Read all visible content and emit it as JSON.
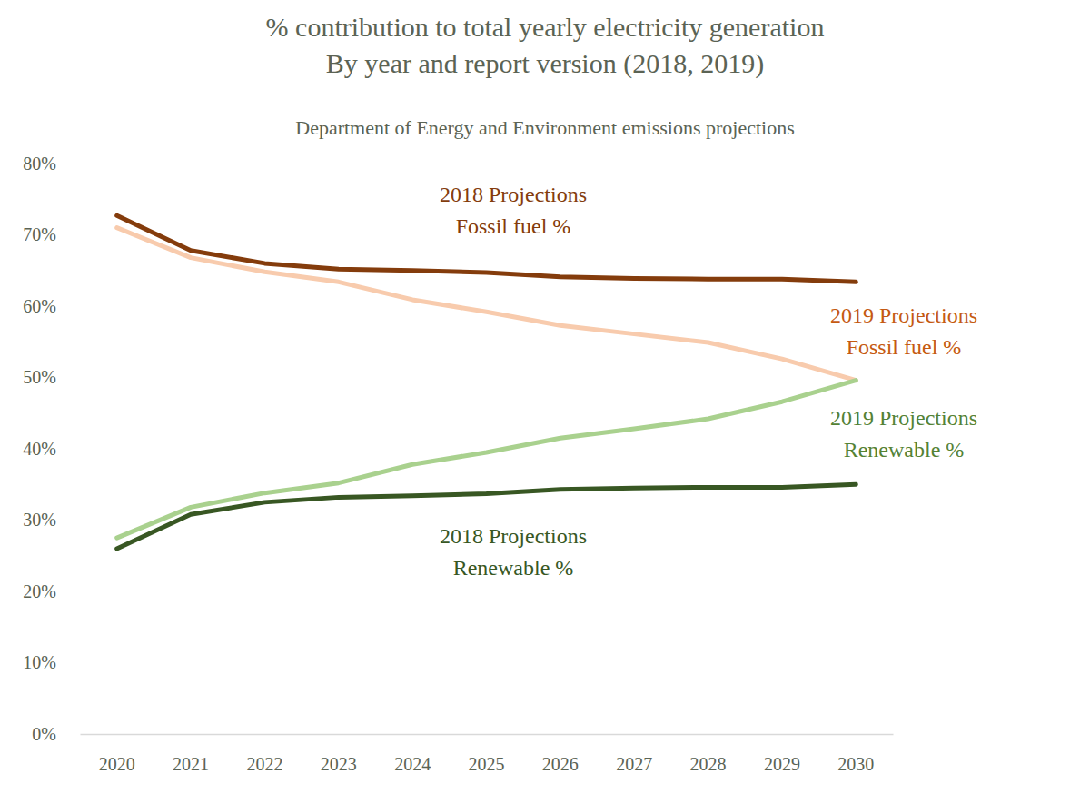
{
  "chart_data": {
    "type": "line",
    "title": [
      "% contribution to total yearly electricity generation",
      "By year and report version (2018, 2019)"
    ],
    "subtitle": "Department of Energy and Environment emissions projections",
    "categories": [
      "2020",
      "2021",
      "2022",
      "2023",
      "2024",
      "2025",
      "2026",
      "2027",
      "2028",
      "2029",
      "2030"
    ],
    "series": [
      {
        "name": "2018 Projections\nFossil fuel %",
        "color": "#843c0c",
        "values": [
          72.7,
          67.8,
          66.0,
          65.2,
          65.0,
          64.7,
          64.1,
          63.9,
          63.8,
          63.8,
          63.4
        ]
      },
      {
        "name": "2019 Projections\nFossil fuel %",
        "color": "#f8cbad",
        "values": [
          71.0,
          66.8,
          64.8,
          63.4,
          60.9,
          59.2,
          57.3,
          56.1,
          54.9,
          52.6,
          49.6
        ]
      },
      {
        "name": "2019 Projections\nRenewable %",
        "color": "#a9d18e",
        "values": [
          27.5,
          31.8,
          33.8,
          35.2,
          37.8,
          39.5,
          41.5,
          42.8,
          44.2,
          46.6,
          49.6
        ]
      },
      {
        "name": "2018 Projections\nRenewable %",
        "color": "#385723",
        "values": [
          26.0,
          30.8,
          32.5,
          33.2,
          33.4,
          33.7,
          34.3,
          34.5,
          34.6,
          34.6,
          35.0
        ]
      }
    ],
    "ylim": [
      0,
      80
    ],
    "yticks": [
      {
        "value": 0,
        "label": "0%"
      },
      {
        "value": 10,
        "label": "10%"
      },
      {
        "value": 20,
        "label": "20%"
      },
      {
        "value": 30,
        "label": "30%"
      },
      {
        "value": 40,
        "label": "40%"
      },
      {
        "value": 50,
        "label": "50%"
      },
      {
        "value": 60,
        "label": "60%"
      },
      {
        "value": 70,
        "label": "70%"
      },
      {
        "value": 80,
        "label": "80%"
      }
    ],
    "grid": false
  }
}
